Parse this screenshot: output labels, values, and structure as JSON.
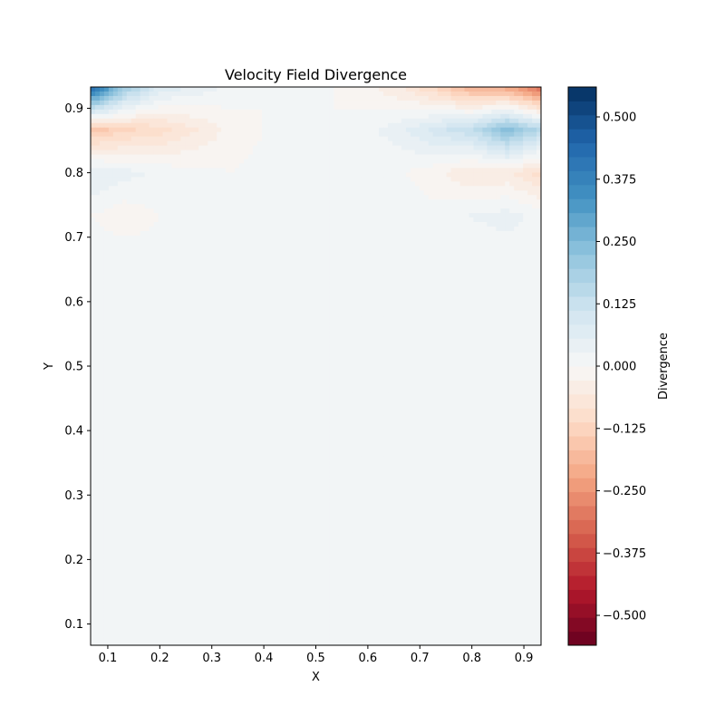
{
  "chart_data": {
    "type": "heatmap",
    "title": "Velocity Field Divergence",
    "xlabel": "X",
    "ylabel": "Y",
    "xlim": [
      0.067,
      0.933
    ],
    "ylim": [
      0.067,
      0.933
    ],
    "xticks": [
      0.1,
      0.2,
      0.3,
      0.4,
      0.5,
      0.6,
      0.7,
      0.8,
      0.9
    ],
    "xtick_labels": [
      "0.1",
      "0.2",
      "0.3",
      "0.4",
      "0.5",
      "0.6",
      "0.7",
      "0.8",
      "0.9"
    ],
    "yticks": [
      0.1,
      0.2,
      0.3,
      0.4,
      0.5,
      0.6,
      0.7,
      0.8,
      0.9
    ],
    "ytick_labels": [
      "0.1",
      "0.2",
      "0.3",
      "0.4",
      "0.5",
      "0.6",
      "0.7",
      "0.8",
      "0.9"
    ],
    "colorbar": {
      "label": "Divergence",
      "colormap": "RdBu",
      "range": [
        -0.56,
        0.56
      ],
      "ticks": [
        -0.5,
        -0.375,
        -0.25,
        -0.125,
        0.0,
        0.125,
        0.25,
        0.375,
        0.5
      ],
      "tick_labels": [
        "−0.500",
        "−0.375",
        "−0.250",
        "−0.125",
        "0.000",
        "0.125",
        "0.250",
        "0.375",
        "0.500"
      ],
      "levels": 40
    },
    "grid": false,
    "x": [
      0.067,
      0.133,
      0.2,
      0.267,
      0.333,
      0.4,
      0.467,
      0.533,
      0.6,
      0.667,
      0.733,
      0.8,
      0.867,
      0.933
    ],
    "y": [
      0.067,
      0.133,
      0.2,
      0.267,
      0.333,
      0.4,
      0.467,
      0.533,
      0.6,
      0.667,
      0.733,
      0.8,
      0.867,
      0.933
    ],
    "z": [
      [
        0.0,
        0.01,
        0.02,
        0.01,
        0.0,
        0.01,
        0.02,
        0.01,
        0.0,
        0.01,
        0.02,
        0.01,
        0.0,
        0.01
      ],
      [
        0.01,
        0.0,
        0.01,
        0.02,
        0.01,
        0.0,
        0.01,
        0.0,
        0.01,
        0.02,
        0.01,
        0.0,
        0.01,
        0.0
      ],
      [
        0.02,
        0.01,
        0.0,
        0.01,
        0.02,
        0.01,
        0.0,
        0.01,
        0.02,
        0.01,
        0.0,
        0.01,
        0.02,
        0.01
      ],
      [
        0.01,
        0.02,
        0.01,
        0.0,
        0.01,
        0.02,
        0.01,
        0.0,
        0.01,
        0.0,
        0.01,
        0.02,
        0.01,
        0.0
      ],
      [
        0.0,
        0.01,
        0.02,
        0.01,
        0.0,
        0.01,
        0.02,
        0.01,
        0.0,
        0.01,
        0.02,
        0.01,
        0.0,
        0.01
      ],
      [
        0.01,
        0.0,
        0.01,
        0.02,
        0.01,
        0.0,
        0.01,
        0.02,
        0.01,
        0.02,
        0.01,
        0.0,
        0.01,
        0.02
      ],
      [
        0.02,
        0.01,
        0.0,
        0.01,
        0.02,
        0.01,
        0.02,
        0.01,
        0.0,
        0.01,
        0.0,
        0.01,
        0.02,
        0.01
      ],
      [
        0.01,
        0.02,
        0.01,
        0.02,
        0.01,
        0.02,
        0.01,
        0.0,
        0.01,
        0.0,
        0.01,
        0.0,
        0.01,
        0.0
      ],
      [
        0.0,
        0.01,
        0.0,
        0.01,
        0.0,
        0.01,
        0.02,
        0.01,
        0.02,
        0.01,
        0.02,
        0.01,
        0.0,
        0.01
      ],
      [
        0.02,
        0.02,
        0.01,
        0.02,
        0.02,
        0.01,
        0.02,
        0.0,
        0.01,
        0.0,
        0.01,
        0.0,
        0.01,
        0.0
      ],
      [
        0.0,
        -0.02,
        0.0,
        0.01,
        0.0,
        0.01,
        0.0,
        0.02,
        0.01,
        0.02,
        0.01,
        0.03,
        0.04,
        0.02
      ],
      [
        0.06,
        0.04,
        0.02,
        0.01,
        0.0,
        0.01,
        0.0,
        0.01,
        0.0,
        0.0,
        -0.02,
        -0.06,
        -0.05,
        -0.1
      ],
      [
        -0.16,
        -0.12,
        -0.1,
        -0.06,
        -0.02,
        0.0,
        0.01,
        0.0,
        0.02,
        0.05,
        0.1,
        0.14,
        0.24,
        0.16
      ],
      [
        0.45,
        0.2,
        0.08,
        0.05,
        0.02,
        0.0,
        0.0,
        0.0,
        -0.02,
        -0.06,
        -0.12,
        -0.2,
        -0.22,
        -0.32
      ]
    ]
  }
}
